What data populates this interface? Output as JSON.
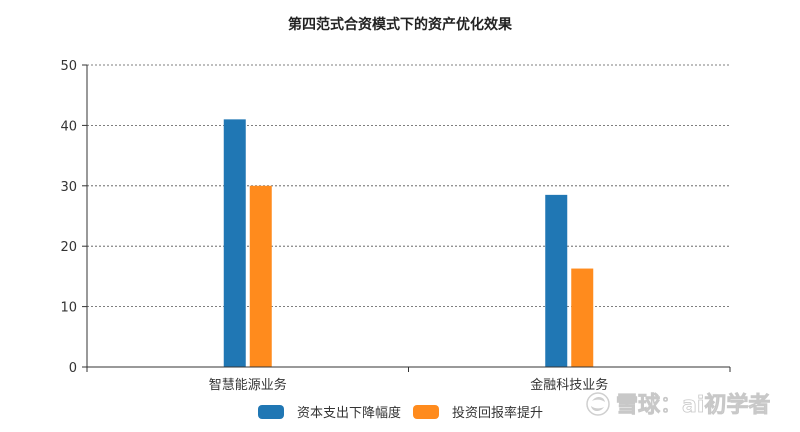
{
  "chart_data": {
    "type": "bar",
    "title": "第四范式合资模式下的资产优化效果",
    "categories": [
      "智慧能源业务",
      "金融科技业务"
    ],
    "series": [
      {
        "name": "资本支出下降幅度",
        "color": "#2077b4",
        "values": [
          41,
          28.5
        ]
      },
      {
        "name": "投资回报率提升",
        "color": "#ff8b1d",
        "values": [
          30,
          16.3
        ]
      }
    ],
    "ylim": [
      0,
      50
    ],
    "yticks": [
      0,
      10,
      20,
      30,
      40,
      50
    ],
    "grid": true,
    "legend_position": "bottom"
  },
  "watermark": {
    "text": "雪球：ai初学者"
  }
}
